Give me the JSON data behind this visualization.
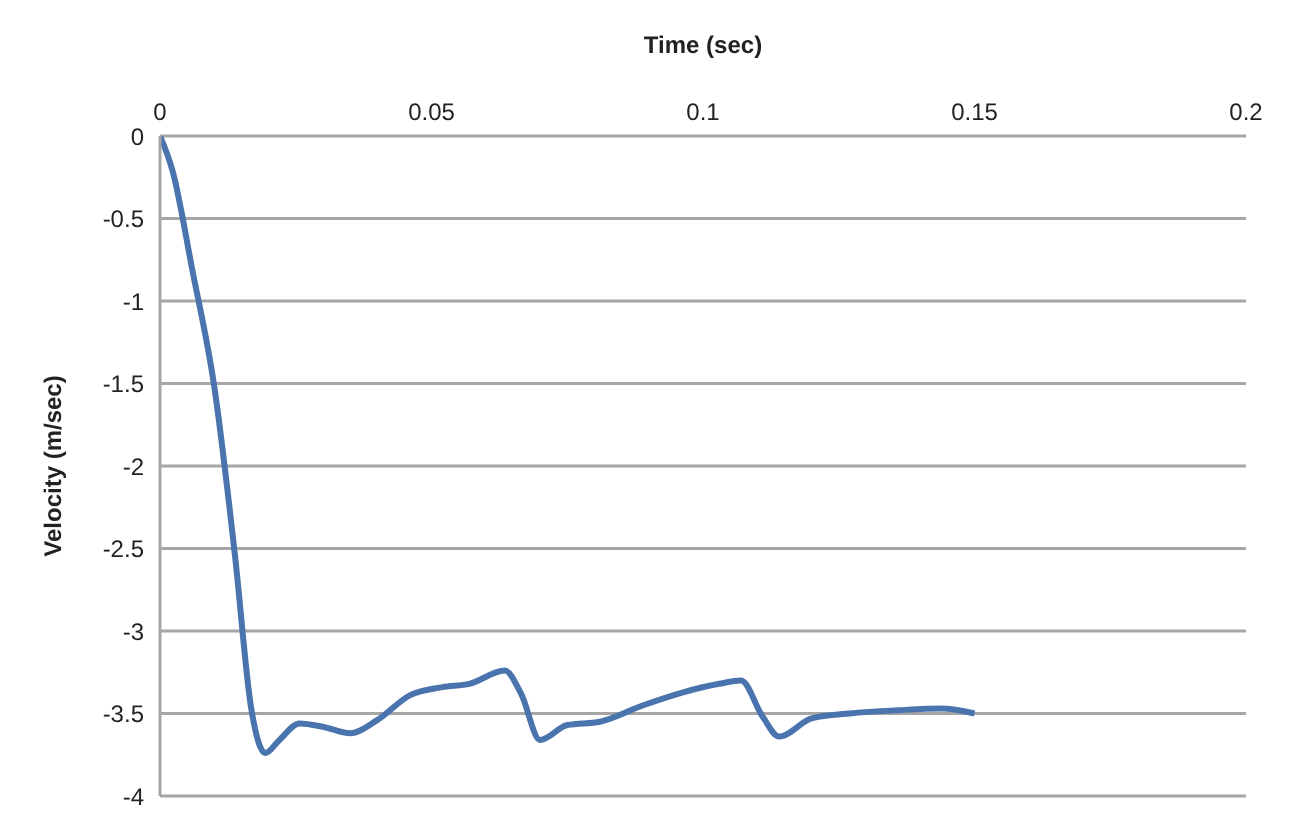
{
  "chart_data": {
    "type": "line",
    "xlabel": "Time (sec)",
    "ylabel": "Velocity (m/sec)",
    "x": [
      0,
      0.0023,
      0.006,
      0.01,
      0.0138,
      0.0168,
      0.0194,
      0.022,
      0.0257,
      0.03,
      0.035,
      0.04,
      0.046,
      0.052,
      0.057,
      0.0635,
      0.0665,
      0.07,
      0.075,
      0.081,
      0.089,
      0.0965,
      0.103,
      0.107,
      0.111,
      0.114,
      0.12,
      0.127,
      0.136,
      0.144,
      0.15
    ],
    "series": [
      {
        "color": "#4a74ad",
        "values": [
          0,
          -0.21,
          -0.82,
          -1.52,
          -2.54,
          -3.47,
          -3.74,
          -3.66,
          -3.56,
          -3.58,
          -3.62,
          -3.54,
          -3.39,
          -3.34,
          -3.32,
          -3.24,
          -3.38,
          -3.66,
          -3.57,
          -3.55,
          -3.45,
          -3.37,
          -3.32,
          -3.3,
          -3.52,
          -3.64,
          -3.53,
          -3.5,
          -3.48,
          -3.47,
          -3.5
        ]
      }
    ],
    "xlim": [
      0,
      0.2
    ],
    "xticks": [
      0,
      0.05,
      0.1,
      0.15,
      0.2
    ],
    "ylim": [
      -4,
      0
    ],
    "yticks": [
      0,
      -0.5,
      -1,
      -1.5,
      -2,
      -2.5,
      -3,
      -3.5,
      -4
    ],
    "grid": "y",
    "marker": "none",
    "line_style": "solid"
  }
}
